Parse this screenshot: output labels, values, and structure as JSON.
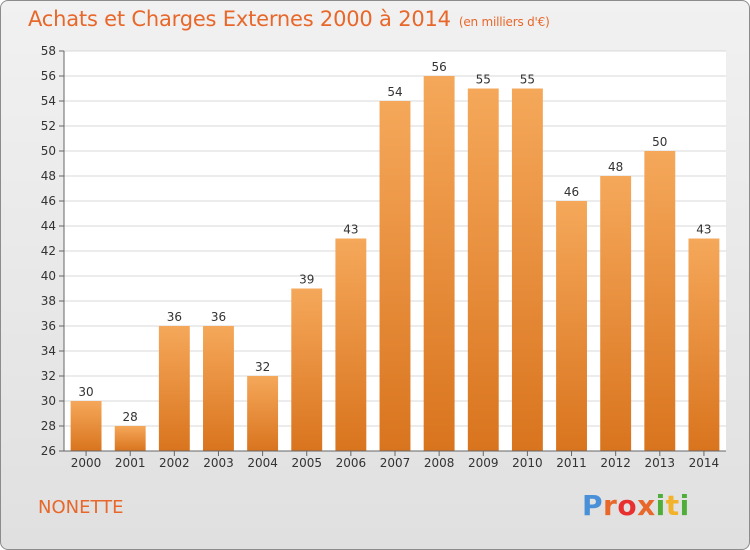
{
  "header": {
    "title": "Achats et Charges Externes 2000 à 2014",
    "unit": "(en milliers d'€)"
  },
  "footer": {
    "commune": "NONETTE",
    "logo_text": "Proxiti"
  },
  "colors": {
    "accent": "#e8672a",
    "bar_top": "#f5a85a",
    "bar_bottom": "#d9741e"
  },
  "chart_data": {
    "type": "bar",
    "title": "Achats et Charges Externes 2000 à 2014",
    "xlabel": "",
    "ylabel": "",
    "categories": [
      "2000",
      "2001",
      "2002",
      "2003",
      "2004",
      "2005",
      "2006",
      "2007",
      "2008",
      "2009",
      "2010",
      "2011",
      "2012",
      "2013",
      "2014"
    ],
    "values": [
      30,
      28,
      36,
      36,
      32,
      39,
      43,
      54,
      56,
      55,
      55,
      46,
      48,
      50,
      43
    ],
    "ylim": [
      26,
      58
    ],
    "yticks": [
      26,
      28,
      30,
      32,
      34,
      36,
      38,
      40,
      42,
      44,
      46,
      48,
      50,
      52,
      54,
      56,
      58
    ],
    "grid": true,
    "legend": "none"
  }
}
